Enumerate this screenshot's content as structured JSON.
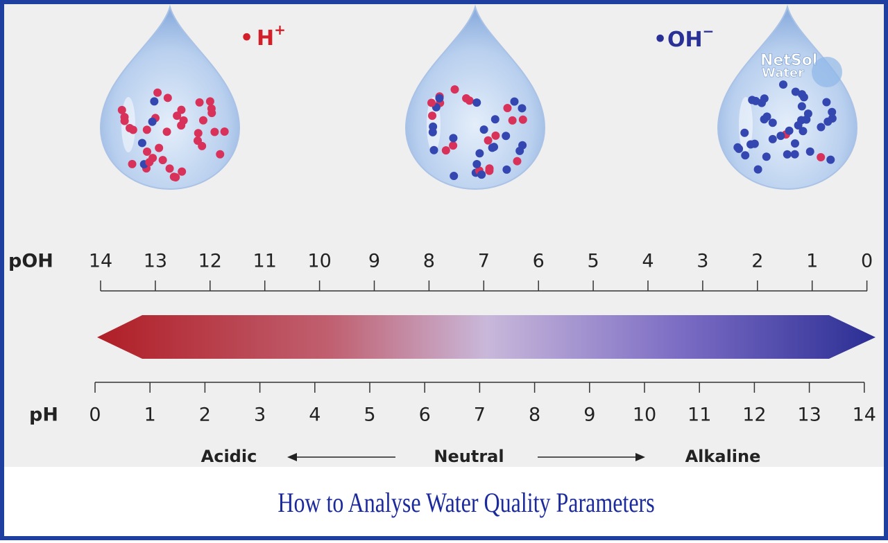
{
  "ions": {
    "acid": {
      "symbol": "H",
      "charge": "+"
    },
    "base": {
      "symbol": "OH",
      "charge": "−"
    }
  },
  "logo": {
    "name": "NetSol",
    "sub": "Water"
  },
  "scale": {
    "poh": {
      "label": "pOH",
      "ticks": [
        14,
        13,
        12,
        11,
        10,
        9,
        8,
        7,
        6,
        5,
        4,
        3,
        2,
        1,
        0
      ]
    },
    "ph": {
      "label": "pH",
      "ticks": [
        0,
        1,
        2,
        3,
        4,
        5,
        6,
        7,
        8,
        9,
        10,
        11,
        12,
        13,
        14
      ]
    }
  },
  "legend": {
    "acidic": "Acidic",
    "neutral": "Neutral",
    "alkaline": "Alkaline"
  },
  "footer": {
    "title": "How to Analyse Water Quality Parameters"
  }
}
